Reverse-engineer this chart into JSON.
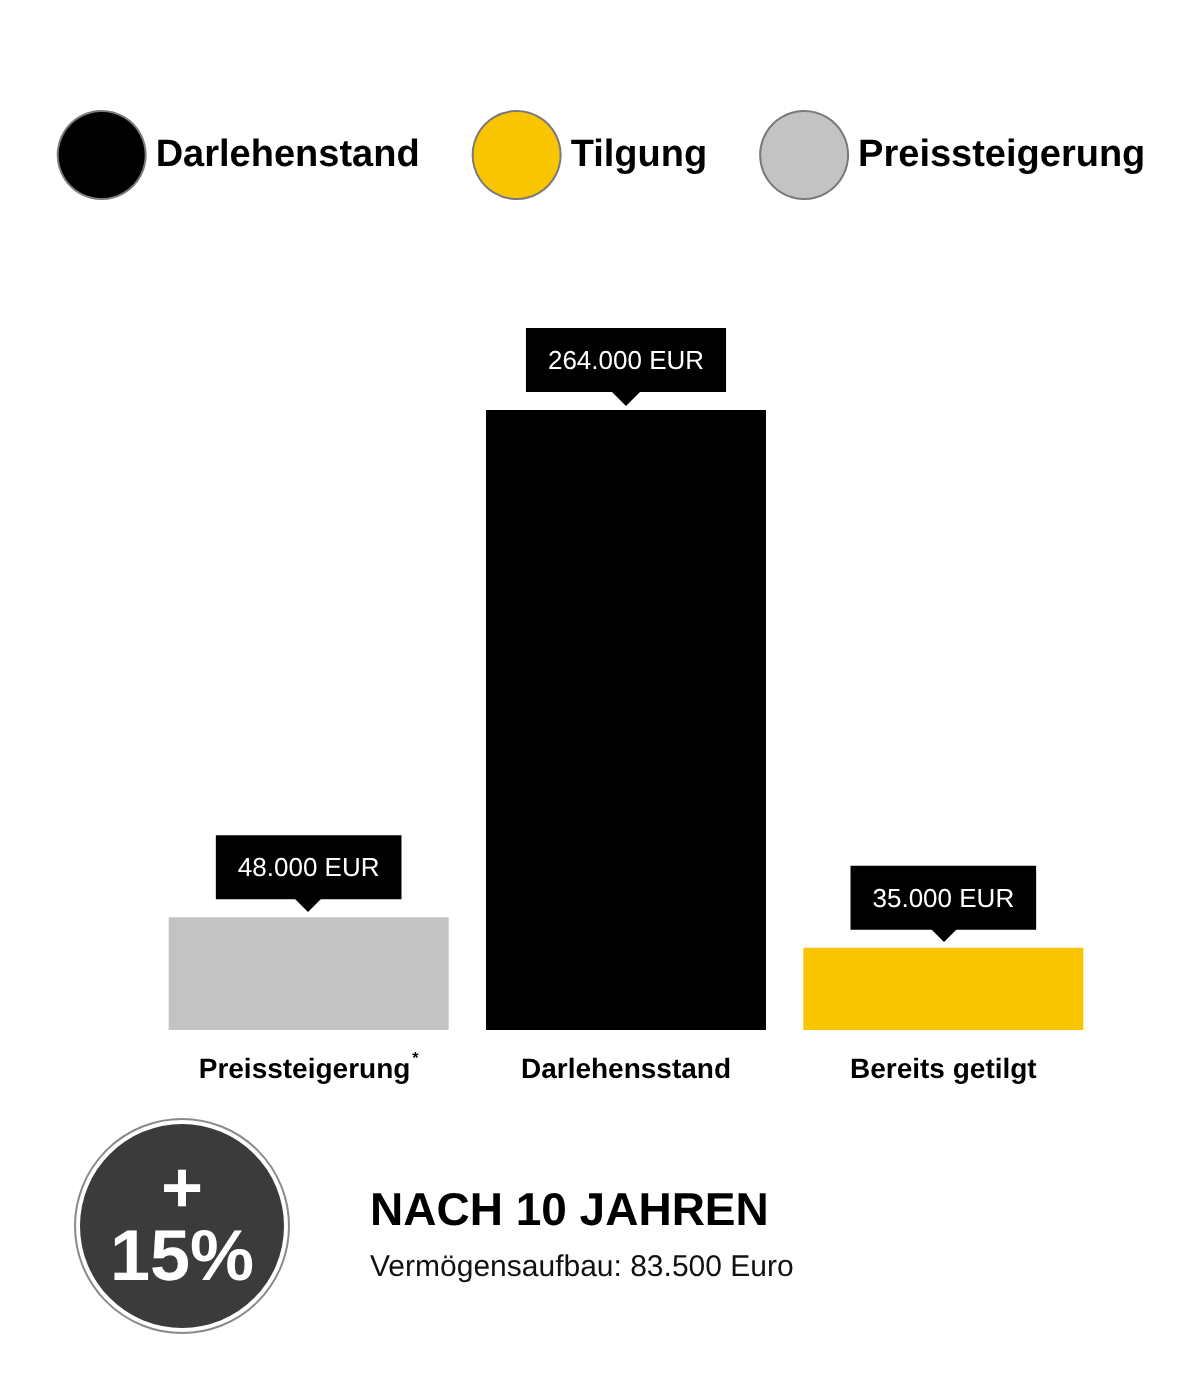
{
  "chart_data": {
    "type": "bar",
    "categories": [
      "Preissteigerung$^{*}$",
      "Darlehensstand",
      "Bereits getilgt"
    ],
    "series": [
      {
        "name": "Darlehenstand",
        "color": "#000000",
        "values": [
          null,
          264000,
          null
        ],
        "value_labels": [
          null,
          "264.000 EUR",
          null
        ]
      },
      {
        "name": "Tilgung",
        "color": "#f8c500",
        "values": [
          null,
          null,
          35000
        ],
        "value_labels": [
          null,
          null,
          "35.000 EUR"
        ]
      },
      {
        "name": "Preissteigerung",
        "color": "#c3c3c3",
        "values": [
          48000,
          null,
          null
        ],
        "value_labels": [
          "48.000 EUR",
          null,
          null
        ]
      }
    ],
    "legend": "top",
    "title": "NACH 10 JAHREN",
    "subtitle": "Vermögensaufbau: 83.500 Euro",
    "annotations": [
      "+ 15%"
    ]
  }
}
